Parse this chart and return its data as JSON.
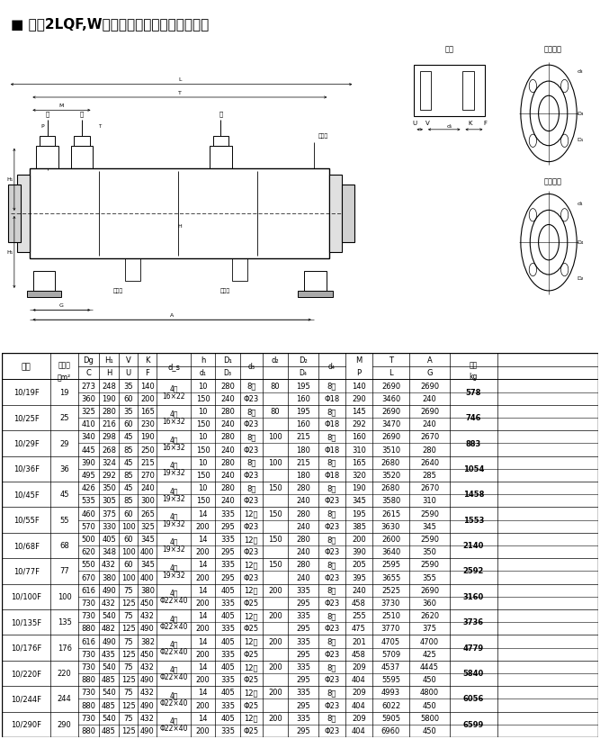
{
  "title": "■ 七、2LQF,W型冷却器尺寸示意图及尺寸表",
  "rows": [
    {
      "model": "10/19F",
      "area": 19,
      "r1": [
        "273",
        "248",
        "35",
        "140",
        "4孔",
        "10",
        "280",
        "8孔",
        "80",
        "195",
        "8孔",
        "140",
        "2690",
        "2690",
        "578"
      ],
      "r2": [
        "360",
        "190",
        "60",
        "200",
        "16×22",
        "150",
        "240",
        "Φ23",
        "",
        "160",
        "Φ18",
        "290",
        "3460",
        "240",
        ""
      ]
    },
    {
      "model": "10/25F",
      "area": 25,
      "r1": [
        "325",
        "280",
        "35",
        "165",
        "4孔",
        "10",
        "280",
        "8孔",
        "80",
        "195",
        "8孔",
        "145",
        "2690",
        "2690",
        "746"
      ],
      "r2": [
        "410",
        "216",
        "60",
        "230",
        "16×32",
        "150",
        "240",
        "Φ23",
        "",
        "160",
        "Φ18",
        "292",
        "3470",
        "240",
        ""
      ]
    },
    {
      "model": "10/29F",
      "area": 29,
      "r1": [
        "340",
        "298",
        "45",
        "190",
        "4孔",
        "10",
        "280",
        "8孔",
        "100",
        "215",
        "8孔",
        "160",
        "2690",
        "2670",
        "883"
      ],
      "r2": [
        "445",
        "268",
        "85",
        "250",
        "16×32",
        "150",
        "240",
        "Φ23",
        "",
        "180",
        "Φ18",
        "310",
        "3510",
        "280",
        ""
      ]
    },
    {
      "model": "10/36F",
      "area": 36,
      "r1": [
        "390",
        "324",
        "45",
        "215",
        "4孔",
        "10",
        "280",
        "8孔",
        "100",
        "215",
        "8孔",
        "165",
        "2680",
        "2640",
        "1054"
      ],
      "r2": [
        "495",
        "292",
        "85",
        "270",
        "19×32",
        "150",
        "240",
        "Φ23",
        "",
        "180",
        "Φ18",
        "320",
        "3520",
        "285",
        ""
      ]
    },
    {
      "model": "10/45F",
      "area": 45,
      "r1": [
        "426",
        "350",
        "45",
        "240",
        "4孔",
        "10",
        "280",
        "8孔",
        "150",
        "280",
        "8孔",
        "190",
        "2680",
        "2670",
        "1458"
      ],
      "r2": [
        "535",
        "305",
        "85",
        "300",
        "19×32",
        "150",
        "240",
        "Φ23",
        "",
        "240",
        "Φ23",
        "345",
        "3580",
        "310",
        ""
      ]
    },
    {
      "model": "10/55F",
      "area": 55,
      "r1": [
        "460",
        "375",
        "60",
        "265",
        "4孔",
        "14",
        "335",
        "12孔",
        "150",
        "280",
        "8孔",
        "195",
        "2615",
        "2590",
        "1553"
      ],
      "r2": [
        "570",
        "330",
        "100",
        "325",
        "19×32",
        "200",
        "295",
        "Φ23",
        "",
        "240",
        "Φ23",
        "385",
        "3630",
        "345",
        ""
      ]
    },
    {
      "model": "10/68F",
      "area": 68,
      "r1": [
        "500",
        "405",
        "60",
        "345",
        "4孔",
        "14",
        "335",
        "12孔",
        "150",
        "280",
        "8孔",
        "200",
        "2600",
        "2590",
        "2140"
      ],
      "r2": [
        "620",
        "348",
        "100",
        "400",
        "19×32",
        "200",
        "295",
        "Φ23",
        "",
        "240",
        "Φ23",
        "390",
        "3640",
        "350",
        ""
      ]
    },
    {
      "model": "10/77F",
      "area": 77,
      "r1": [
        "550",
        "432",
        "60",
        "345",
        "4孔",
        "14",
        "335",
        "12孔",
        "150",
        "280",
        "8孔",
        "205",
        "2595",
        "2590",
        "2592"
      ],
      "r2": [
        "670",
        "380",
        "100",
        "400",
        "19×32",
        "200",
        "295",
        "Φ23",
        "",
        "240",
        "Φ23",
        "395",
        "3655",
        "355",
        ""
      ]
    },
    {
      "model": "10/100F",
      "area": 100,
      "r1": [
        "616",
        "490",
        "75",
        "380",
        "4孔",
        "14",
        "405",
        "12孔",
        "200",
        "335",
        "8孔",
        "240",
        "2525",
        "2690",
        "3160"
      ],
      "r2": [
        "730",
        "432",
        "125",
        "450",
        "Φ22×40",
        "200",
        "335",
        "Φ25",
        "",
        "295",
        "Φ23",
        "458",
        "3730",
        "360",
        ""
      ]
    },
    {
      "model": "10/135F",
      "area": 135,
      "r1": [
        "730",
        "540",
        "75",
        "432",
        "4孔",
        "14",
        "405",
        "12孔",
        "200",
        "335",
        "8孔",
        "255",
        "2510",
        "2620",
        "3736"
      ],
      "r2": [
        "880",
        "482",
        "125",
        "490",
        "Φ22×40",
        "200",
        "335",
        "Φ25",
        "",
        "295",
        "Φ23",
        "475",
        "3770",
        "375",
        ""
      ]
    },
    {
      "model": "10/176F",
      "area": 176,
      "r1": [
        "616",
        "490",
        "75",
        "382",
        "4孔",
        "14",
        "405",
        "12孔",
        "200",
        "335",
        "8孔",
        "201",
        "4705",
        "4700",
        "4779"
      ],
      "r2": [
        "730",
        "435",
        "125",
        "450",
        "Φ22×40",
        "200",
        "335",
        "Φ25",
        "",
        "295",
        "Φ23",
        "458",
        "5709",
        "425",
        ""
      ]
    },
    {
      "model": "10/220F",
      "area": 220,
      "r1": [
        "730",
        "540",
        "75",
        "432",
        "4孔",
        "14",
        "405",
        "12孔",
        "200",
        "335",
        "8孔",
        "209",
        "4537",
        "4445",
        "5840"
      ],
      "r2": [
        "880",
        "485",
        "125",
        "490",
        "Φ22×40",
        "200",
        "335",
        "Φ25",
        "",
        "295",
        "Φ23",
        "404",
        "5595",
        "450",
        ""
      ]
    },
    {
      "model": "10/244F",
      "area": 244,
      "r1": [
        "730",
        "540",
        "75",
        "432",
        "4孔",
        "14",
        "405",
        "12孔",
        "200",
        "335",
        "8孔",
        "209",
        "4993",
        "4800",
        "6056"
      ],
      "r2": [
        "880",
        "485",
        "125",
        "490",
        "Φ22×40",
        "200",
        "335",
        "Φ25",
        "",
        "295",
        "Φ23",
        "404",
        "6022",
        "450",
        ""
      ]
    },
    {
      "model": "10/290F",
      "area": 290,
      "r1": [
        "730",
        "540",
        "75",
        "432",
        "4孔",
        "14",
        "405",
        "12孔",
        "200",
        "335",
        "8孔",
        "209",
        "5905",
        "5800",
        "6599"
      ],
      "r2": [
        "880",
        "485",
        "125",
        "490",
        "Φ22×40",
        "200",
        "335",
        "Φ25",
        "",
        "295",
        "Φ23",
        "404",
        "6960",
        "450",
        ""
      ]
    }
  ]
}
